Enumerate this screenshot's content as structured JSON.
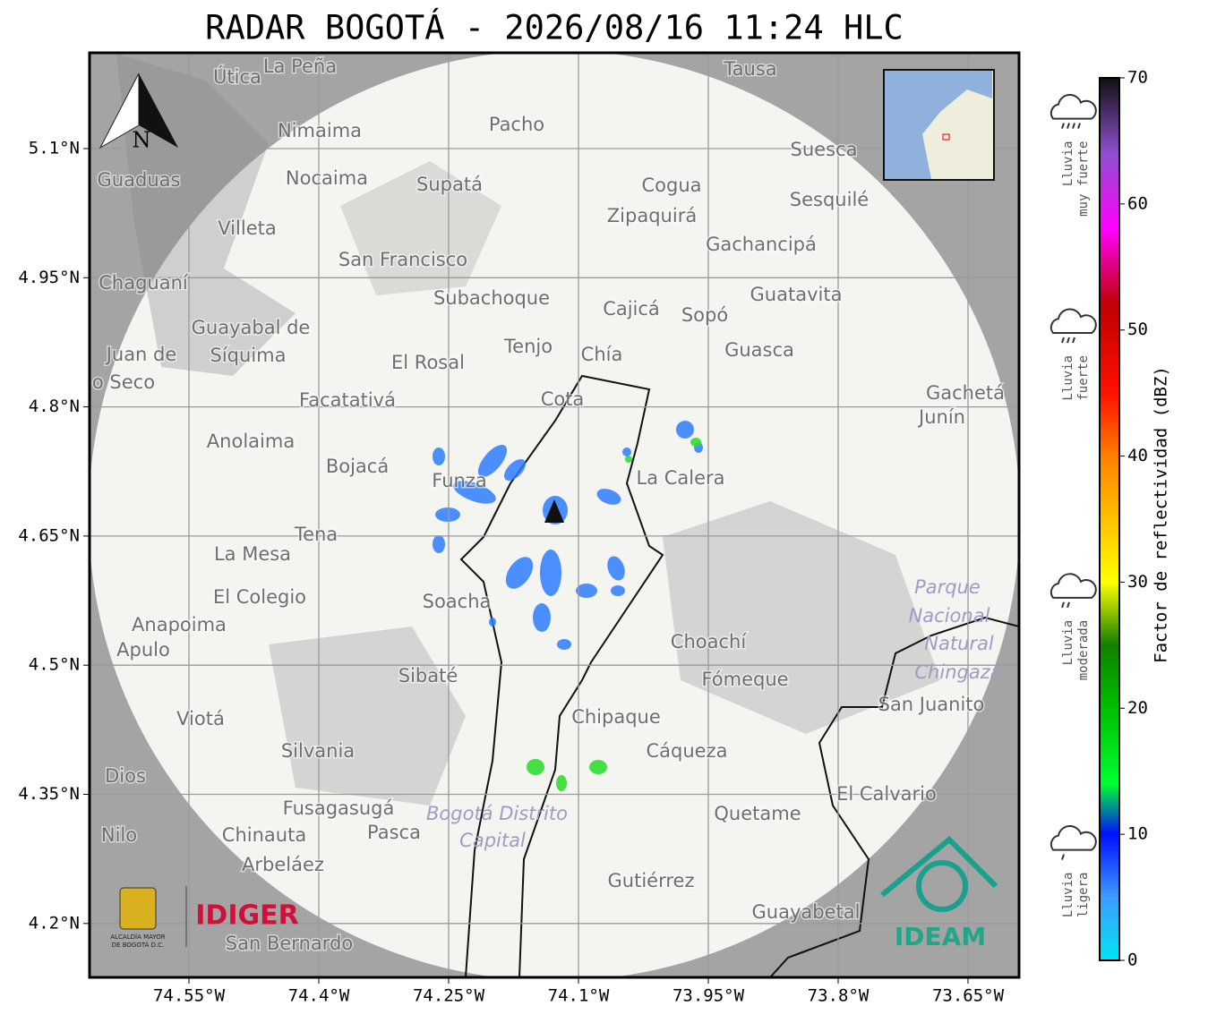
{
  "title": "RADAR BOGOTÁ - 2026/08/16 11:24 HLC",
  "map": {
    "lon_ticks": [
      {
        "value": -74.55,
        "label": "74.55°W"
      },
      {
        "value": -74.4,
        "label": "74.4°W"
      },
      {
        "value": -74.25,
        "label": "74.25°W"
      },
      {
        "value": -74.1,
        "label": "74.1°W"
      },
      {
        "value": -73.95,
        "label": "73.95°W"
      },
      {
        "value": -73.8,
        "label": "73.8°W"
      },
      {
        "value": -73.65,
        "label": "73.65°W"
      }
    ],
    "lat_ticks": [
      {
        "value": 5.1,
        "label": "5.1°N"
      },
      {
        "value": 4.95,
        "label": "4.95°N"
      },
      {
        "value": 4.8,
        "label": "4.8°N"
      },
      {
        "value": 4.65,
        "label": "4.65°N"
      },
      {
        "value": 4.5,
        "label": "4.5°N"
      },
      {
        "value": 4.35,
        "label": "4.35°N"
      },
      {
        "value": 4.2,
        "label": "4.2°N"
      }
    ],
    "places": [
      "La Peña",
      "Útica",
      "Tausa",
      "Pacho",
      "Nimaima",
      "Suesca",
      "Guaduas",
      "Nocaima",
      "Supatá",
      "Cogua",
      "Zipaquirá",
      "Sesquilé",
      "Villeta",
      "Gachancipá",
      "San Francisco",
      "Chaguaní",
      "Guatavita",
      "Subachoque",
      "Cajicá",
      "Sopó",
      "Guayabal de",
      "Síquima",
      "Tenjo",
      "Chía",
      "Guasca",
      "El Rosal",
      "Facatativá",
      "Cota",
      "Gachetá",
      "Junín",
      "Anolaima",
      "Bojacá",
      "Funza",
      "La Calera",
      "Tena",
      "La Mesa",
      "El Colegio",
      "Soacha",
      "Anapoima",
      "Apulo",
      "Choachí",
      "Sibaté",
      "Fómeque",
      "San Juanito",
      "Viotá",
      "Chipaque",
      "Silvania",
      "Cáqueza",
      "Dios",
      "El Calvario",
      "Fusagasugá",
      "Quetame",
      "Chinauta",
      "Pasca",
      "Nilo",
      "Arbeláez",
      "Gutiérrez",
      "Guayabetal",
      "San Bernardo",
      "Juan de",
      "o Seco"
    ],
    "park_labels": [
      "Parque",
      "Nacional",
      "Natural",
      "Chingaza",
      "Bogotá Distrito",
      "Capital"
    ],
    "compass": "N"
  },
  "colorbar": {
    "label": "Factor de reflectividad (dBZ)",
    "lim": [
      0,
      70
    ],
    "ticks": [
      0,
      10,
      20,
      30,
      40,
      50,
      60,
      70
    ],
    "stops": [
      [
        0,
        "#00e5f5"
      ],
      [
        5,
        "#3c9cff"
      ],
      [
        10,
        "#0010ff"
      ],
      [
        14,
        "#00ff30"
      ],
      [
        20,
        "#00c000"
      ],
      [
        25,
        "#108000"
      ],
      [
        30,
        "#ffff00"
      ],
      [
        35,
        "#ffc000"
      ],
      [
        40,
        "#ff8000"
      ],
      [
        45,
        "#ff1000"
      ],
      [
        52,
        "#c00000"
      ],
      [
        58,
        "#ff00ff"
      ],
      [
        64,
        "#9050d0"
      ],
      [
        70,
        "#101010"
      ]
    ]
  },
  "rain_levels": [
    {
      "lines": [
        "Lluvia",
        "ligera"
      ],
      "value": 5
    },
    {
      "lines": [
        "Lluvia",
        "moderada"
      ],
      "value": 25
    },
    {
      "lines": [
        "Lluvia",
        "fuerte"
      ],
      "value": 46
    },
    {
      "lines": [
        "Lluvia",
        "muy fuerte"
      ],
      "value": 63
    }
  ],
  "logos": {
    "alcaldia": [
      "ALCALDÍA MAYOR",
      "DE BOGOTÁ D.C."
    ],
    "idiger": "IDIGER",
    "ideam": "IDEAM"
  }
}
